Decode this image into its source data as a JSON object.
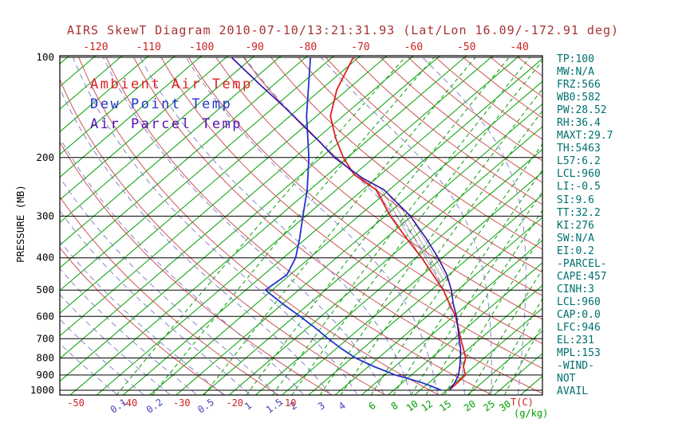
{
  "title": {
    "text": "AIRS SkewT Diagram 2010-07-10/13:21:31.93 (Lat/Lon 16.09/-172.91 deg)",
    "color": "#a83232"
  },
  "legend": [
    {
      "label": "Ambient Air Temp",
      "color": "#dd2222"
    },
    {
      "label": "Dew Point Temp",
      "color": "#2233cc"
    },
    {
      "label": "Air Parcel Temp",
      "color": "#5511b0"
    }
  ],
  "axes": {
    "pressure_label": "PRESSURE (MB)",
    "temp_unit": "T(C)",
    "mix_unit": "(g/kg)"
  },
  "stats_panel": [
    "TP:100",
    "MW:N/A",
    "FRZ:566",
    "WB0:582",
    "PW:28.52",
    "RH:36.4",
    "MAXT:29.7",
    "TH:5463",
    "L57:6.2",
    "LCL:960",
    "LI:-0.5",
    "SI:9.6",
    "TT:32.2",
    "KI:276",
    "SW:N/A",
    "EI:0.2",
    "-PARCEL-",
    "CAPE:457",
    "CINH:3",
    "LCL:960",
    "CAP:0.0",
    "LFC:946",
    "EL:231",
    "MPL:153",
    "-WIND-",
    "NOT",
    "AVAIL"
  ],
  "colors": {
    "isotherm": "#00a100",
    "mixing_ratio_line": "#00a100",
    "dry_adiabat": "#cc5555",
    "moist_adiabat": "#8585c8",
    "pressure_line": "#000000",
    "frame": "#000000",
    "hatch": "#584040",
    "temp_tick": "#cc2222",
    "mix_label_small": "#4444bb",
    "mix_label_large": "#00a100",
    "pressure_tick": "#000000",
    "stats_text": "#007070"
  },
  "chart_data": {
    "type": "line",
    "title": "AIRS SkewT Diagram 2010-07-10/13:21:31.93 (Lat/Lon 16.09/-172.91 deg)",
    "xlabel": "Temperature (C)",
    "ylabel": "PRESSURE (MB)",
    "y_scale": "log",
    "skew_t": true,
    "pressure_ticks_mb": [
      100,
      200,
      300,
      400,
      500,
      600,
      700,
      800,
      900,
      1000
    ],
    "top_temp_ticks_c": [
      -120,
      -110,
      -100,
      -90,
      -80,
      -70,
      -60,
      -50,
      -40
    ],
    "bottom_temp_ticks_c": [
      -50,
      -40,
      -30,
      -20,
      -10
    ],
    "isotherm_step_c": 5,
    "mixing_ratio_lines_g_kg": [
      0.1,
      0.2,
      0.5,
      1,
      1.5,
      2,
      3,
      4,
      6,
      8,
      10,
      12,
      15,
      20,
      25,
      30
    ],
    "cape_hatch_between_mb": [
      475,
      233
    ],
    "series": [
      {
        "name": "Ambient Air Temp",
        "color": "#dd2222",
        "points_p_t": [
          [
            1000,
            20.5
          ],
          [
            950,
            20.4
          ],
          [
            900,
            20.2
          ],
          [
            850,
            18.0
          ],
          [
            800,
            16.5
          ],
          [
            750,
            14.0
          ],
          [
            700,
            11.3
          ],
          [
            650,
            8.5
          ],
          [
            600,
            5.4
          ],
          [
            550,
            1.5
          ],
          [
            500,
            -2.7
          ],
          [
            450,
            -8.0
          ],
          [
            400,
            -13.9
          ],
          [
            350,
            -21.0
          ],
          [
            300,
            -29.0
          ],
          [
            250,
            -37.5
          ],
          [
            225,
            -45.0
          ],
          [
            200,
            -50.8
          ],
          [
            175,
            -56.5
          ],
          [
            150,
            -62.4
          ],
          [
            125,
            -67.0
          ],
          [
            100,
            -71.0
          ]
        ]
      },
      {
        "name": "Dew Point Temp",
        "color": "#2233cc",
        "points_p_t": [
          [
            1000,
            19.0
          ],
          [
            975,
            16.5
          ],
          [
            950,
            13.8
          ],
          [
            925,
            10.5
          ],
          [
            900,
            7.0
          ],
          [
            850,
            1.2
          ],
          [
            800,
            -4.3
          ],
          [
            750,
            -9.0
          ],
          [
            700,
            -13.7
          ],
          [
            650,
            -18.5
          ],
          [
            600,
            -23.9
          ],
          [
            550,
            -30.0
          ],
          [
            500,
            -36.3
          ],
          [
            450,
            -35.6
          ],
          [
            400,
            -37.7
          ],
          [
            350,
            -41.2
          ],
          [
            300,
            -45.5
          ],
          [
            250,
            -50.5
          ],
          [
            200,
            -57.3
          ],
          [
            150,
            -66.9
          ],
          [
            100,
            -79.1
          ]
        ]
      },
      {
        "name": "Air Parcel Temp",
        "color": "#3311aa",
        "points_p_t": [
          [
            1000,
            20.5
          ],
          [
            950,
            19.9
          ],
          [
            900,
            18.9
          ],
          [
            850,
            17.3
          ],
          [
            800,
            15.5
          ],
          [
            750,
            13.5
          ],
          [
            700,
            11.0
          ],
          [
            650,
            8.4
          ],
          [
            600,
            5.6
          ],
          [
            550,
            2.2
          ],
          [
            500,
            -1.2
          ],
          [
            450,
            -5.4
          ],
          [
            400,
            -10.8
          ],
          [
            350,
            -17.3
          ],
          [
            300,
            -25.2
          ],
          [
            250,
            -36.0
          ],
          [
            231,
            -42.5
          ],
          [
            215,
            -47.5
          ],
          [
            200,
            -52.5
          ],
          [
            180,
            -58.5
          ],
          [
            160,
            -65.5
          ],
          [
            140,
            -73.5
          ],
          [
            120,
            -83.0
          ],
          [
            100,
            -94.0
          ]
        ]
      }
    ]
  }
}
